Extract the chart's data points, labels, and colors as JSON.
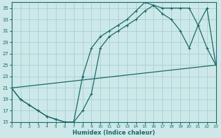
{
  "xlabel": "Humidex (Indice chaleur)",
  "bg_color": "#cce8e8",
  "grid_color": "#aad0d0",
  "line_color": "#1a6868",
  "x_min": 0,
  "x_max": 23,
  "y_min": 15,
  "y_max": 36,
  "yticks": [
    15,
    17,
    19,
    21,
    23,
    25,
    27,
    29,
    31,
    33,
    35
  ],
  "xticks": [
    0,
    1,
    2,
    3,
    4,
    5,
    6,
    7,
    8,
    9,
    10,
    11,
    12,
    13,
    14,
    15,
    16,
    17,
    18,
    19,
    20,
    21,
    22,
    23
  ],
  "line1_x": [
    0,
    1,
    2,
    3,
    4,
    5,
    6,
    7,
    8,
    9,
    10,
    11,
    12,
    13,
    14,
    15,
    16,
    17,
    18,
    19,
    20,
    21,
    22,
    23
  ],
  "line1_y": [
    21,
    19,
    18,
    17,
    16,
    15.5,
    15,
    15,
    23,
    28,
    30,
    31,
    32,
    33,
    34.5,
    36,
    35.5,
    35,
    35,
    35,
    35,
    32,
    28,
    25
  ],
  "line2_x": [
    0,
    1,
    2,
    3,
    4,
    5,
    6,
    7,
    8,
    9,
    10,
    11,
    12,
    13,
    14,
    15,
    16,
    17,
    18,
    19,
    20,
    21,
    22,
    23
  ],
  "line2_y": [
    21,
    19,
    18,
    17,
    16,
    15.5,
    15,
    15,
    17,
    20,
    28,
    30,
    31,
    32,
    33,
    34.5,
    35.5,
    34,
    33,
    31,
    28,
    32,
    35,
    25
  ],
  "line3_x": [
    0,
    23
  ],
  "line3_y": [
    21,
    25
  ]
}
